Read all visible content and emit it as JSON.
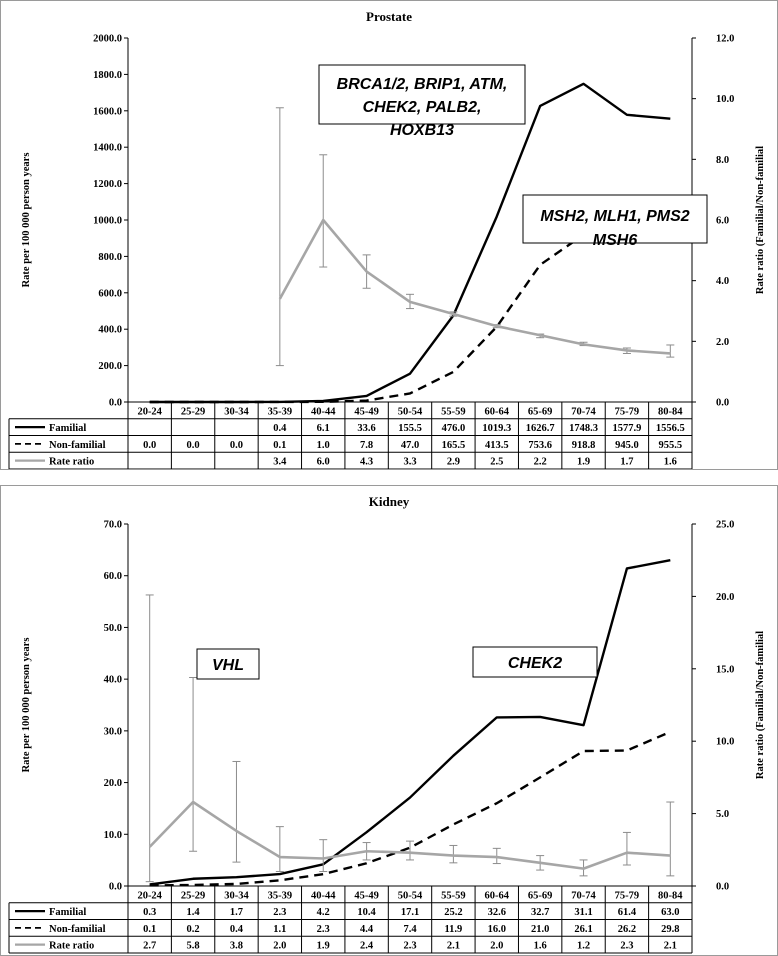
{
  "chart_data": [
    {
      "type": "line",
      "title": "Prostate",
      "ylabel": "Rate per 100 000 person years",
      "y2label": "Rate ratio (Familial/Non-familial",
      "categories": [
        "20-24",
        "25-29",
        "30-34",
        "35-39",
        "40-44",
        "45-49",
        "50-54",
        "55-59",
        "60-64",
        "65-69",
        "70-74",
        "75-79",
        "80-84"
      ],
      "ylim": [
        0,
        2000
      ],
      "yticks": [
        "0.0",
        "200.0",
        "400.0",
        "600.0",
        "800.0",
        "1000.0",
        "1200.0",
        "1400.0",
        "1600.0",
        "1800.0",
        "2000.0"
      ],
      "y2lim": [
        0,
        12
      ],
      "y2ticks": [
        "0.0",
        "2.0",
        "4.0",
        "6.0",
        "8.0",
        "10.0",
        "12.0"
      ],
      "series": [
        {
          "name": "Familial",
          "axis": "left",
          "style": "solid",
          "color": "#000000",
          "values": [
            0,
            0,
            0,
            0.4,
            6.1,
            33.6,
            155.5,
            476.0,
            1019.3,
            1626.7,
            1748.3,
            1577.9,
            1556.5
          ],
          "labels": [
            "",
            "",
            "",
            "0.4",
            "6.1",
            "33.6",
            "155.5",
            "476.0",
            "1019.3",
            "1626.7",
            "1748.3",
            "1577.9",
            "1556.5"
          ]
        },
        {
          "name": "Non-familial",
          "axis": "left",
          "style": "dashed",
          "color": "#000000",
          "values": [
            0.0,
            0.0,
            0.0,
            0.1,
            1.0,
            7.8,
            47.0,
            165.5,
            413.5,
            753.6,
            918.8,
            945.0,
            955.5
          ],
          "labels": [
            "0.0",
            "0.0",
            "0.0",
            "0.1",
            "1.0",
            "7.8",
            "47.0",
            "165.5",
            "413.5",
            "753.6",
            "918.8",
            "945.0",
            "955.5"
          ]
        },
        {
          "name": "Rate ratio",
          "axis": "right",
          "style": "solid",
          "color": "#a6a6a6",
          "values": [
            null,
            null,
            null,
            3.4,
            6.0,
            4.3,
            3.3,
            2.9,
            2.5,
            2.2,
            1.9,
            1.7,
            1.6
          ],
          "labels": [
            "",
            "",
            "",
            "3.4",
            "6.0",
            "4.3",
            "3.3",
            "2.9",
            "2.5",
            "2.2",
            "1.9",
            "1.7",
            "1.6"
          ],
          "err_low": [
            null,
            null,
            null,
            1.2,
            4.45,
            3.75,
            3.08,
            2.83,
            2.45,
            2.12,
            1.86,
            1.6,
            1.48
          ],
          "err_high": [
            null,
            null,
            null,
            9.7,
            8.15,
            4.85,
            3.55,
            2.97,
            2.55,
            2.24,
            1.97,
            1.78,
            1.88
          ]
        }
      ],
      "annotations": [
        {
          "lines": [
            "BRCA1/2, BRIP1, ATM,",
            "CHEK2, PALB2,",
            "HOXB13"
          ]
        },
        {
          "lines": [
            "MSH2, MLH1, PMS2",
            "MSH6"
          ]
        }
      ]
    },
    {
      "type": "line",
      "title": "Kidney",
      "ylabel": "Rate per 100 000 person years",
      "y2label": "Rate ratio (Familial/Non-familial",
      "categories": [
        "20-24",
        "25-29",
        "30-34",
        "35-39",
        "40-44",
        "45-49",
        "50-54",
        "55-59",
        "60-64",
        "65-69",
        "70-74",
        "75-79",
        "80-84"
      ],
      "ylim": [
        0,
        70
      ],
      "yticks": [
        "0.0",
        "10.0",
        "20.0",
        "30.0",
        "40.0",
        "50.0",
        "60.0",
        "70.0"
      ],
      "y2lim": [
        0,
        25
      ],
      "y2ticks": [
        "0.0",
        "5.0",
        "10.0",
        "15.0",
        "20.0",
        "25.0"
      ],
      "series": [
        {
          "name": "Familial",
          "axis": "left",
          "style": "solid",
          "color": "#000000",
          "values": [
            0.3,
            1.4,
            1.7,
            2.3,
            4.2,
            10.4,
            17.1,
            25.2,
            32.6,
            32.7,
            31.1,
            61.4,
            63.0
          ],
          "labels": [
            "0.3",
            "1.4",
            "1.7",
            "2.3",
            "4.2",
            "10.4",
            "17.1",
            "25.2",
            "32.6",
            "32.7",
            "31.1",
            "61.4",
            "63.0"
          ]
        },
        {
          "name": "Non-familial",
          "axis": "left",
          "style": "dashed",
          "color": "#000000",
          "values": [
            0.1,
            0.2,
            0.4,
            1.1,
            2.3,
            4.4,
            7.4,
            11.9,
            16.0,
            21.0,
            26.1,
            26.2,
            29.8
          ],
          "labels": [
            "0.1",
            "0.2",
            "0.4",
            "1.1",
            "2.3",
            "4.4",
            "7.4",
            "11.9",
            "16.0",
            "21.0",
            "26.1",
            "26.2",
            "29.8"
          ]
        },
        {
          "name": "Rate ratio",
          "axis": "right",
          "style": "solid",
          "color": "#a6a6a6",
          "values": [
            2.7,
            5.8,
            3.8,
            2.0,
            1.9,
            2.4,
            2.3,
            2.1,
            2.0,
            1.6,
            1.2,
            2.3,
            2.1
          ],
          "labels": [
            "2.7",
            "5.8",
            "3.8",
            "2.0",
            "1.9",
            "2.4",
            "2.3",
            "2.1",
            "2.0",
            "1.6",
            "1.2",
            "2.3",
            "2.1"
          ],
          "err_low": [
            0.3,
            2.4,
            1.65,
            1.0,
            1.0,
            1.8,
            1.8,
            1.6,
            1.55,
            1.1,
            0.7,
            1.45,
            0.7
          ],
          "err_high": [
            20.1,
            14.4,
            8.6,
            4.1,
            3.2,
            3.0,
            3.1,
            2.8,
            2.6,
            2.1,
            1.8,
            3.7,
            5.8
          ]
        }
      ],
      "annotations": [
        {
          "lines": [
            "VHL"
          ]
        },
        {
          "lines": [
            "CHEK2"
          ]
        }
      ]
    }
  ]
}
